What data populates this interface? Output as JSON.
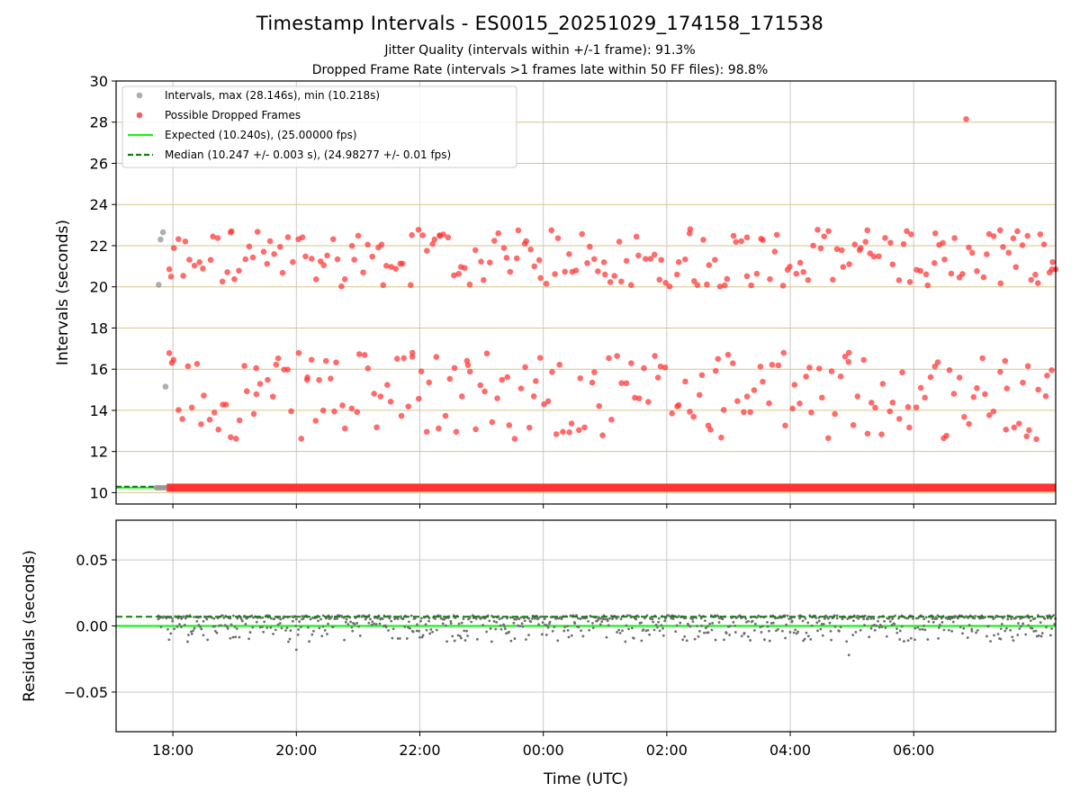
{
  "chart_data": {
    "title": "Timestamp Intervals - ES0015_20251029_174158_171538",
    "subtitle_1": "Jitter Quality (intervals within +/-1 frame): 91.3%",
    "subtitle_2": "Dropped Frame Rate (intervals >1 frames late within 50 FF files): 98.8%",
    "colors": {
      "intervals": "#9a9a9a",
      "dropped": "#ff3333",
      "expected": "#22ee22",
      "median": "#137a13",
      "hgrid_top": "#d6c68a",
      "grid": "#c8c8c8",
      "residual_points": "#6f6f6f"
    },
    "top": {
      "type": "scatter",
      "ylabel": "Intervals (seconds)",
      "ylim": [
        9.45,
        30
      ],
      "yticks": [
        "10",
        "12",
        "14",
        "16",
        "18",
        "20",
        "22",
        "24",
        "26",
        "28",
        "30"
      ],
      "expected": 10.24,
      "median": 10.247,
      "legend_position": "upper-left",
      "legend": [
        "Intervals, max (28.146s), min (10.218s)",
        "Possible Dropped Frames",
        "Expected (10.240s), (25.00000 fps)",
        "Median (10.247 +/- 0.003 s), (24.98277 +/- 0.01 fps)"
      ],
      "gray_points": [
        [
          17.77,
          20.1
        ],
        [
          17.8,
          22.3
        ],
        [
          17.84,
          22.65
        ],
        [
          17.88,
          15.15
        ]
      ],
      "red_points": [
        [
          17.97,
          20.5
        ],
        [
          18.01,
          16.45
        ],
        [
          18.95,
          22.7
        ],
        [
          19.35,
          16.05
        ],
        [
          20.18,
          15.6
        ],
        [
          20.48,
          16.4
        ],
        [
          21.38,
          22.05
        ],
        [
          21.88,
          16.8
        ],
        [
          22.32,
          22.5
        ],
        [
          22.78,
          16.2
        ],
        [
          23.7,
          22.1
        ],
        [
          23.95,
          16.55
        ],
        [
          25.0,
          20.6
        ],
        [
          26.38,
          22.8
        ],
        [
          26.83,
          16.5
        ],
        [
          27.3,
          22.4
        ],
        [
          28.55,
          22.45
        ],
        [
          28.95,
          16.8
        ],
        [
          29.25,
          22.75
        ],
        [
          29.96,
          22.55
        ],
        [
          30.35,
          22.6
        ],
        [
          30.85,
          28.15
        ],
        [
          31.4,
          22.75
        ],
        [
          31.48,
          16.4
        ],
        [
          31.68,
          22.7
        ],
        [
          31.85,
          16.15
        ],
        [
          32.05,
          22.55
        ],
        [
          32.25,
          21.2
        ],
        [
          32.3,
          20.85
        ]
      ],
      "red_upper_band": [
        20,
        22.8
      ],
      "red_lower_band": [
        12.6,
        16.8
      ],
      "red_band_x_range": [
        17.9,
        32.3
      ],
      "baseline_x_range": [
        17.9,
        32.3
      ],
      "xlim": [
        17.08,
        32.3
      ]
    },
    "bottom": {
      "type": "scatter",
      "ylabel": "Residuals (seconds)",
      "xlabel": "Time (UTC)",
      "ylim": [
        -0.08,
        0.08
      ],
      "yticks": [
        "−0.05",
        "0.00",
        "0.05"
      ],
      "ytick_values": [
        -0.05,
        0.0,
        0.05
      ],
      "expected_residual": 0.0,
      "median_residual": 0.007,
      "residual_range": [
        -0.022,
        0.009
      ],
      "xlim": [
        17.08,
        32.3
      ]
    },
    "xticks": [
      "18:00",
      "20:00",
      "22:00",
      "00:00",
      "02:00",
      "04:00",
      "06:00"
    ],
    "xtick_values": [
      18,
      20,
      22,
      24,
      26,
      28,
      30
    ]
  }
}
